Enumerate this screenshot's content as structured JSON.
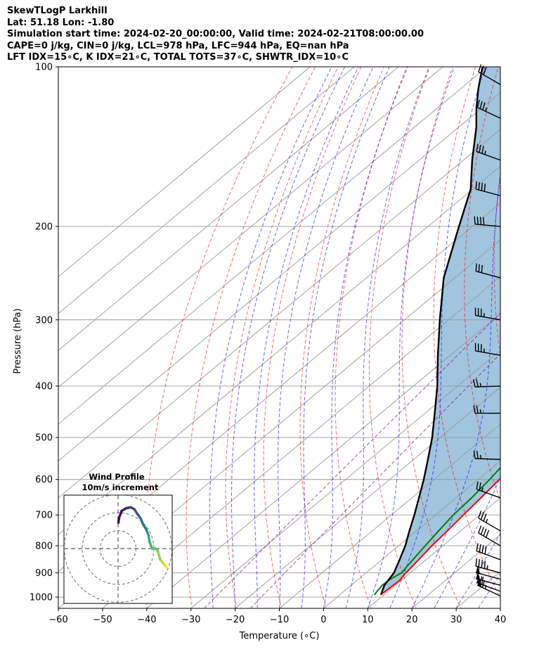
{
  "header": {
    "line1": "SkewTLogP Larkhill",
    "line2": "Lat: 51.18   Lon: -1.80",
    "line3": "Simulation start time: 2024-02-20_00:00:00, Valid time: 2024-02-21T08:00:00.00",
    "line4": "CAPE=0 j/kg, CIN=0 j/kg, LCL=978 hPa, LFC=944 hPa, EQ=nan hPa",
    "line5": "LFT IDX=15∘C, K IDX=21∘C, TOTAL TOTS=37∘C, SHWTR_IDX=10∘C"
  },
  "chart_data": {
    "type": "line",
    "xlabel": "Temperature (∘C)",
    "ylabel": "Pressure (hPa)",
    "xlim": [
      -60,
      40
    ],
    "ylim": [
      1050,
      100
    ],
    "yscale": "log",
    "skew": true,
    "grid": true,
    "x_ticks": [
      -60,
      -50,
      -40,
      -30,
      -20,
      -10,
      0,
      10,
      20,
      30,
      40
    ],
    "y_ticks": [
      1000,
      900,
      800,
      700,
      600,
      500,
      400,
      300,
      200,
      100
    ],
    "series": [
      {
        "kind": "temperature",
        "color": "#ff0000",
        "points": [
          [
            9.3,
            990
          ],
          [
            9.5,
            950
          ],
          [
            9.6,
            930
          ],
          [
            9.0,
            900
          ],
          [
            8.3,
            850
          ],
          [
            7.5,
            800
          ],
          [
            7.0,
            750
          ],
          [
            6.3,
            700
          ],
          [
            5.6,
            650
          ],
          [
            4.8,
            600
          ],
          [
            3.9,
            550
          ],
          [
            3.0,
            500
          ],
          [
            1.8,
            450
          ],
          [
            -0.5,
            400
          ],
          [
            -6.0,
            350
          ],
          [
            -12.0,
            300
          ],
          [
            -19.0,
            250
          ],
          [
            -27.0,
            210
          ],
          [
            -30.5,
            200
          ],
          [
            -32.0,
            190
          ],
          [
            -30.5,
            180
          ],
          [
            -33.0,
            170
          ],
          [
            -36.5,
            160
          ],
          [
            -40.5,
            150
          ],
          [
            -44.5,
            140
          ],
          [
            -48.5,
            130
          ],
          [
            -51.0,
            120
          ],
          [
            -53.0,
            110
          ],
          [
            -55.0,
            100
          ]
        ]
      },
      {
        "kind": "dewpoint",
        "color": "#008000",
        "points": [
          [
            7.8,
            990
          ],
          [
            7.0,
            950
          ],
          [
            7.2,
            925
          ],
          [
            8.0,
            900
          ],
          [
            7.0,
            850
          ],
          [
            6.0,
            800
          ],
          [
            5.0,
            750
          ],
          [
            4.0,
            700
          ],
          [
            3.5,
            650
          ],
          [
            2.6,
            600
          ],
          [
            1.3,
            550
          ],
          [
            -0.5,
            500
          ],
          [
            -3.5,
            450
          ],
          [
            -7.5,
            400
          ],
          [
            -12.5,
            350
          ],
          [
            -18.5,
            300
          ],
          [
            -26.0,
            250
          ],
          [
            -31.0,
            220
          ],
          [
            -34.5,
            200
          ],
          [
            -37.0,
            190
          ],
          [
            -38.0,
            180
          ],
          [
            -33.5,
            170
          ],
          [
            -34.5,
            160
          ],
          [
            -40.5,
            150
          ],
          [
            -45.5,
            140
          ],
          [
            -53.0,
            130
          ],
          [
            -54.0,
            120
          ],
          [
            -54.5,
            110
          ],
          [
            -55.0,
            100
          ]
        ]
      },
      {
        "kind": "parcel",
        "color": "#000000",
        "points": [
          [
            9.3,
            990
          ],
          [
            7.5,
            950
          ],
          [
            6.3,
            900
          ],
          [
            4.0,
            850
          ],
          [
            1.5,
            800
          ],
          [
            -1.6,
            750
          ],
          [
            -4.8,
            700
          ],
          [
            -8.4,
            650
          ],
          [
            -12.3,
            600
          ],
          [
            -16.8,
            550
          ],
          [
            -21.8,
            500
          ],
          [
            -27.8,
            450
          ],
          [
            -34.6,
            400
          ],
          [
            -42.8,
            350
          ],
          [
            -52.0,
            300
          ],
          [
            -62.5,
            250
          ],
          [
            -73.0,
            200
          ],
          [
            -80.5,
            170
          ],
          [
            -88.0,
            150
          ],
          [
            -96.0,
            130
          ],
          [
            -101.0,
            120
          ],
          [
            -106.0,
            110
          ],
          [
            -111.0,
            100
          ]
        ]
      }
    ],
    "wind_barbs": [
      {
        "p": 995,
        "speed": 65,
        "dir": 295
      },
      {
        "p": 975,
        "speed": 60,
        "dir": 290
      },
      {
        "p": 950,
        "speed": 55,
        "dir": 285
      },
      {
        "p": 925,
        "speed": 50,
        "dir": 285
      },
      {
        "p": 900,
        "speed": 45,
        "dir": 285
      },
      {
        "p": 850,
        "speed": 40,
        "dir": 290
      },
      {
        "p": 800,
        "speed": 40,
        "dir": 300
      },
      {
        "p": 750,
        "speed": 35,
        "dir": 300
      },
      {
        "p": 650,
        "speed": 25,
        "dir": 290
      },
      {
        "p": 550,
        "speed": 25,
        "dir": 272
      },
      {
        "p": 450,
        "speed": 25,
        "dir": 270
      },
      {
        "p": 400,
        "speed": 25,
        "dir": 268
      },
      {
        "p": 350,
        "speed": 35,
        "dir": 280
      },
      {
        "p": 300,
        "speed": 35,
        "dir": 280
      },
      {
        "p": 250,
        "speed": 30,
        "dir": 285
      },
      {
        "p": 200,
        "speed": 40,
        "dir": 275
      },
      {
        "p": 175,
        "speed": 40,
        "dir": 285
      },
      {
        "p": 150,
        "speed": 35,
        "dir": 290
      },
      {
        "p": 125,
        "speed": 35,
        "dir": 295
      },
      {
        "p": 108,
        "speed": 30,
        "dir": 300
      }
    ],
    "wind_profile": {
      "title": "Wind Profile",
      "subtitle": "10m/s increment",
      "ring_step_ms": 10,
      "rings": 3,
      "hodograph_uv": [
        [
          27,
          -10.5
        ],
        [
          26,
          -9.2
        ],
        [
          25,
          -8.0
        ],
        [
          23.5,
          -6.0
        ],
        [
          22,
          -1.0
        ],
        [
          21,
          0
        ],
        [
          19,
          0
        ],
        [
          17.5,
          4.0
        ],
        [
          17,
          7.5
        ],
        [
          16,
          10.0
        ],
        [
          15.5,
          11.0
        ],
        [
          14,
          13.5
        ],
        [
          12.5,
          17.0
        ],
        [
          11,
          19.0
        ],
        [
          9,
          22.0
        ],
        [
          7,
          23.0
        ],
        [
          4.5,
          22.5
        ],
        [
          2,
          21.0
        ],
        [
          0.5,
          17.0
        ],
        [
          0.2,
          14.5
        ]
      ]
    },
    "colors": {
      "temperature": "#ff0000",
      "dewpoint": "#008000",
      "parcel": "#000000",
      "cape_fill": "#a1c5de",
      "dry_adiabat": "#ff0000",
      "moist_adiabat": "#0000ff",
      "mixing_ratio": "#8b008b",
      "isotherm": "#999999"
    }
  }
}
